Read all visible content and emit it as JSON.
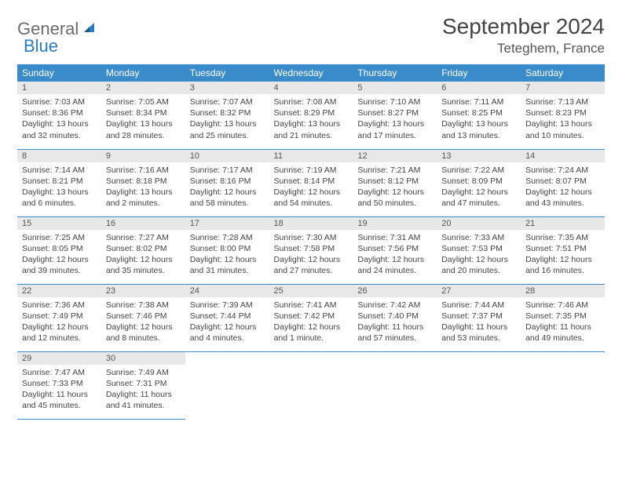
{
  "logo": {
    "general": "General",
    "blue": "Blue"
  },
  "title": "September 2024",
  "location": "Teteghem, France",
  "header_bg": "#3a8bc9",
  "daynum_bg": "#e8e8e8",
  "columns": [
    "Sunday",
    "Monday",
    "Tuesday",
    "Wednesday",
    "Thursday",
    "Friday",
    "Saturday"
  ],
  "weeks": [
    [
      {
        "n": "1",
        "sr": "7:03 AM",
        "ss": "8:36 PM",
        "dl": "13 hours and 32 minutes."
      },
      {
        "n": "2",
        "sr": "7:05 AM",
        "ss": "8:34 PM",
        "dl": "13 hours and 28 minutes."
      },
      {
        "n": "3",
        "sr": "7:07 AM",
        "ss": "8:32 PM",
        "dl": "13 hours and 25 minutes."
      },
      {
        "n": "4",
        "sr": "7:08 AM",
        "ss": "8:29 PM",
        "dl": "13 hours and 21 minutes."
      },
      {
        "n": "5",
        "sr": "7:10 AM",
        "ss": "8:27 PM",
        "dl": "13 hours and 17 minutes."
      },
      {
        "n": "6",
        "sr": "7:11 AM",
        "ss": "8:25 PM",
        "dl": "13 hours and 13 minutes."
      },
      {
        "n": "7",
        "sr": "7:13 AM",
        "ss": "8:23 PM",
        "dl": "13 hours and 10 minutes."
      }
    ],
    [
      {
        "n": "8",
        "sr": "7:14 AM",
        "ss": "8:21 PM",
        "dl": "13 hours and 6 minutes."
      },
      {
        "n": "9",
        "sr": "7:16 AM",
        "ss": "8:18 PM",
        "dl": "13 hours and 2 minutes."
      },
      {
        "n": "10",
        "sr": "7:17 AM",
        "ss": "8:16 PM",
        "dl": "12 hours and 58 minutes."
      },
      {
        "n": "11",
        "sr": "7:19 AM",
        "ss": "8:14 PM",
        "dl": "12 hours and 54 minutes."
      },
      {
        "n": "12",
        "sr": "7:21 AM",
        "ss": "8:12 PM",
        "dl": "12 hours and 50 minutes."
      },
      {
        "n": "13",
        "sr": "7:22 AM",
        "ss": "8:09 PM",
        "dl": "12 hours and 47 minutes."
      },
      {
        "n": "14",
        "sr": "7:24 AM",
        "ss": "8:07 PM",
        "dl": "12 hours and 43 minutes."
      }
    ],
    [
      {
        "n": "15",
        "sr": "7:25 AM",
        "ss": "8:05 PM",
        "dl": "12 hours and 39 minutes."
      },
      {
        "n": "16",
        "sr": "7:27 AM",
        "ss": "8:02 PM",
        "dl": "12 hours and 35 minutes."
      },
      {
        "n": "17",
        "sr": "7:28 AM",
        "ss": "8:00 PM",
        "dl": "12 hours and 31 minutes."
      },
      {
        "n": "18",
        "sr": "7:30 AM",
        "ss": "7:58 PM",
        "dl": "12 hours and 27 minutes."
      },
      {
        "n": "19",
        "sr": "7:31 AM",
        "ss": "7:56 PM",
        "dl": "12 hours and 24 minutes."
      },
      {
        "n": "20",
        "sr": "7:33 AM",
        "ss": "7:53 PM",
        "dl": "12 hours and 20 minutes."
      },
      {
        "n": "21",
        "sr": "7:35 AM",
        "ss": "7:51 PM",
        "dl": "12 hours and 16 minutes."
      }
    ],
    [
      {
        "n": "22",
        "sr": "7:36 AM",
        "ss": "7:49 PM",
        "dl": "12 hours and 12 minutes."
      },
      {
        "n": "23",
        "sr": "7:38 AM",
        "ss": "7:46 PM",
        "dl": "12 hours and 8 minutes."
      },
      {
        "n": "24",
        "sr": "7:39 AM",
        "ss": "7:44 PM",
        "dl": "12 hours and 4 minutes."
      },
      {
        "n": "25",
        "sr": "7:41 AM",
        "ss": "7:42 PM",
        "dl": "12 hours and 1 minute."
      },
      {
        "n": "26",
        "sr": "7:42 AM",
        "ss": "7:40 PM",
        "dl": "11 hours and 57 minutes."
      },
      {
        "n": "27",
        "sr": "7:44 AM",
        "ss": "7:37 PM",
        "dl": "11 hours and 53 minutes."
      },
      {
        "n": "28",
        "sr": "7:46 AM",
        "ss": "7:35 PM",
        "dl": "11 hours and 49 minutes."
      }
    ],
    [
      {
        "n": "29",
        "sr": "7:47 AM",
        "ss": "7:33 PM",
        "dl": "11 hours and 45 minutes."
      },
      {
        "n": "30",
        "sr": "7:49 AM",
        "ss": "7:31 PM",
        "dl": "11 hours and 41 minutes."
      },
      null,
      null,
      null,
      null,
      null
    ]
  ],
  "labels": {
    "sunrise": "Sunrise:",
    "sunset": "Sunset:",
    "daylight": "Daylight:"
  }
}
